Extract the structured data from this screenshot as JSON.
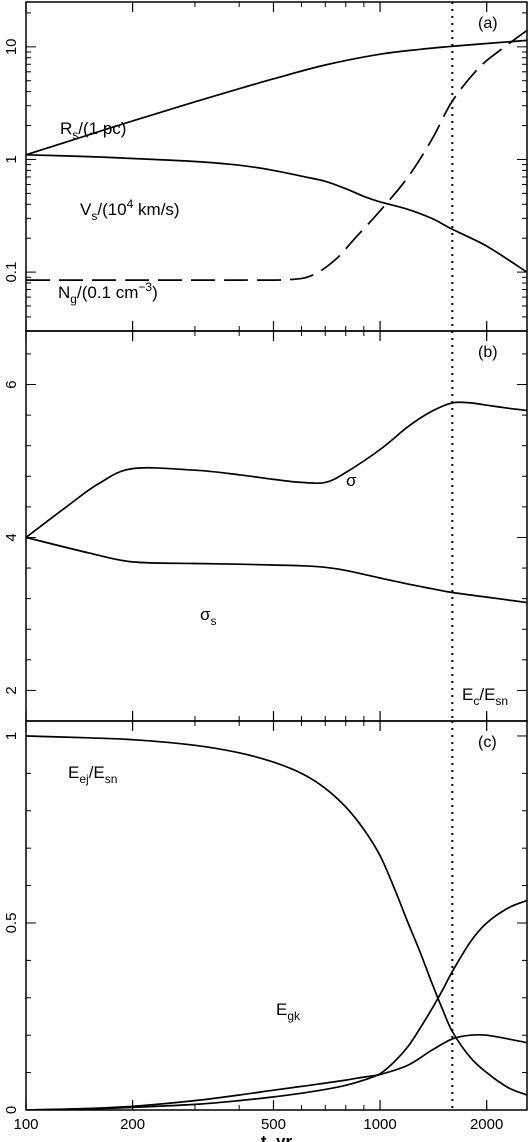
{
  "chart_data": {
    "type": "line",
    "xlabel": "t, yr",
    "xscale": "log",
    "xlim": [
      100,
      2600
    ],
    "x_ticks": [
      100,
      200,
      500,
      1000,
      2000
    ],
    "x_tick_labels": [
      "100",
      "200",
      "500",
      "1000",
      "2000"
    ],
    "vline": {
      "x": 1600,
      "style": "dotted"
    },
    "panels": [
      {
        "tag": "(a)",
        "yscale": "log",
        "ylim": [
          0.03,
          25
        ],
        "y_ticks": [
          0.1,
          1,
          10
        ],
        "y_tick_labels": [
          "0.1",
          "1",
          "10"
        ],
        "series": [
          {
            "name": "Rs/(1 pc)",
            "label_main": "R",
            "label_sub": "s",
            "label_rest": "/(1 pc)",
            "style": "solid",
            "x": [
              100,
              150,
              200,
              300,
              400,
              500,
              700,
              1000,
              1300,
              1600,
              2000,
              2600
            ],
            "y": [
              1.1,
              1.65,
              2.2,
              3.25,
              4.25,
              5.2,
              6.9,
              8.6,
              9.5,
              10.1,
              10.7,
              11.4
            ]
          },
          {
            "name": "Vs/(10^4 km/s)",
            "label_main": "V",
            "label_sub": "s",
            "label_rest": "/(10",
            "label_sup": "4",
            "label_tail": " km/s)",
            "style": "solid",
            "x": [
              100,
              150,
              200,
              300,
              400,
              500,
              600,
              700,
              800,
              900,
              1000,
              1200,
              1400,
              1600,
              2000,
              2600
            ],
            "y": [
              1.1,
              1.06,
              1.02,
              0.96,
              0.89,
              0.8,
              0.71,
              0.64,
              0.55,
              0.47,
              0.42,
              0.36,
              0.3,
              0.24,
              0.17,
              0.1
            ]
          },
          {
            "name": "Ng/(0.1 cm^-3)",
            "label_main": "N",
            "label_sub": "g",
            "label_rest": "/(0.1 cm",
            "label_sup": "−3",
            "label_tail": ")",
            "style": "dashed",
            "x": [
              100,
              200,
              400,
              560,
              650,
              750,
              850,
              1000,
              1200,
              1400,
              1600,
              1900,
              2200,
              2600
            ],
            "y": [
              0.085,
              0.085,
              0.085,
              0.086,
              0.095,
              0.13,
              0.2,
              0.35,
              0.7,
              1.5,
              3.3,
              6.5,
              9.5,
              14
            ]
          }
        ]
      },
      {
        "tag": "(b)",
        "yscale": "linear",
        "ylim": [
          1.6,
          6.7
        ],
        "y_ticks": [
          2,
          4,
          6
        ],
        "y_tick_labels": [
          "2",
          "4",
          "6"
        ],
        "series": [
          {
            "name": "σ",
            "label_main": "σ",
            "label_sub": "",
            "style": "solid",
            "x": [
              100,
              130,
              160,
              200,
              300,
              400,
              500,
              600,
              700,
              800,
              1000,
              1200,
              1400,
              1600,
              1800,
              2000,
              2300,
              2600
            ],
            "y": [
              4.0,
              4.4,
              4.7,
              4.9,
              4.88,
              4.82,
              4.76,
              4.72,
              4.72,
              4.85,
              5.15,
              5.45,
              5.65,
              5.76,
              5.76,
              5.73,
              5.69,
              5.66
            ]
          },
          {
            "name": "σs",
            "label_main": "σ",
            "label_sub": "s",
            "style": "solid",
            "x": [
              100,
              150,
              200,
              300,
              400,
              500,
              600,
              700,
              800,
              1000,
              1200,
              1400,
              1600,
              2000,
              2600
            ],
            "y": [
              4.0,
              3.8,
              3.68,
              3.66,
              3.65,
              3.64,
              3.63,
              3.61,
              3.57,
              3.47,
              3.39,
              3.33,
              3.28,
              3.22,
              3.15
            ]
          }
        ]
      },
      {
        "tag": "(c)",
        "yscale": "linear",
        "ylim": [
          0,
          1.04
        ],
        "y_ticks": [
          0,
          0.5,
          1
        ],
        "y_tick_labels": [
          "0",
          "0.5",
          "1"
        ],
        "series": [
          {
            "name": "Eej/Esn",
            "label_main": "E",
            "label_sub": "ej",
            "label_rest": "/E",
            "label_sub2": "sn",
            "style": "solid",
            "x": [
              100,
              150,
              200,
              300,
              400,
              500,
              600,
              700,
              800,
              900,
              1000,
              1100,
              1200,
              1300,
              1400,
              1500,
              1600,
              1800,
              2000,
              2300,
              2600
            ],
            "y": [
              1.0,
              0.995,
              0.99,
              0.975,
              0.955,
              0.93,
              0.9,
              0.86,
              0.81,
              0.75,
              0.68,
              0.59,
              0.5,
              0.42,
              0.34,
              0.27,
              0.21,
              0.14,
              0.1,
              0.06,
              0.04
            ]
          },
          {
            "name": "Ec/Esn",
            "label_main": "E",
            "label_sub": "c",
            "label_rest": "/E",
            "label_sub2": "sn",
            "style": "solid",
            "x": [
              100,
              150,
              200,
              300,
              400,
              500,
              600,
              700,
              800,
              900,
              1000,
              1100,
              1200,
              1300,
              1400,
              1500,
              1600,
              1800,
              2000,
              2300,
              2600
            ],
            "y": [
              0.0,
              0.003,
              0.007,
              0.015,
              0.025,
              0.035,
              0.045,
              0.055,
              0.066,
              0.08,
              0.097,
              0.13,
              0.17,
              0.22,
              0.27,
              0.32,
              0.37,
              0.45,
              0.5,
              0.54,
              0.56
            ]
          },
          {
            "name": "Egk",
            "label_main": "E",
            "label_sub": "gk",
            "style": "solid",
            "x": [
              100,
              150,
              200,
              300,
              400,
              500,
              600,
              700,
              800,
              900,
              1000,
              1200,
              1400,
              1600,
              1800,
              2000,
              2300,
              2600
            ],
            "y": [
              0.0,
              0.004,
              0.01,
              0.025,
              0.04,
              0.053,
              0.063,
              0.072,
              0.08,
              0.088,
              0.095,
              0.12,
              0.16,
              0.19,
              0.2,
              0.2,
              0.19,
              0.18
            ]
          }
        ]
      }
    ]
  }
}
